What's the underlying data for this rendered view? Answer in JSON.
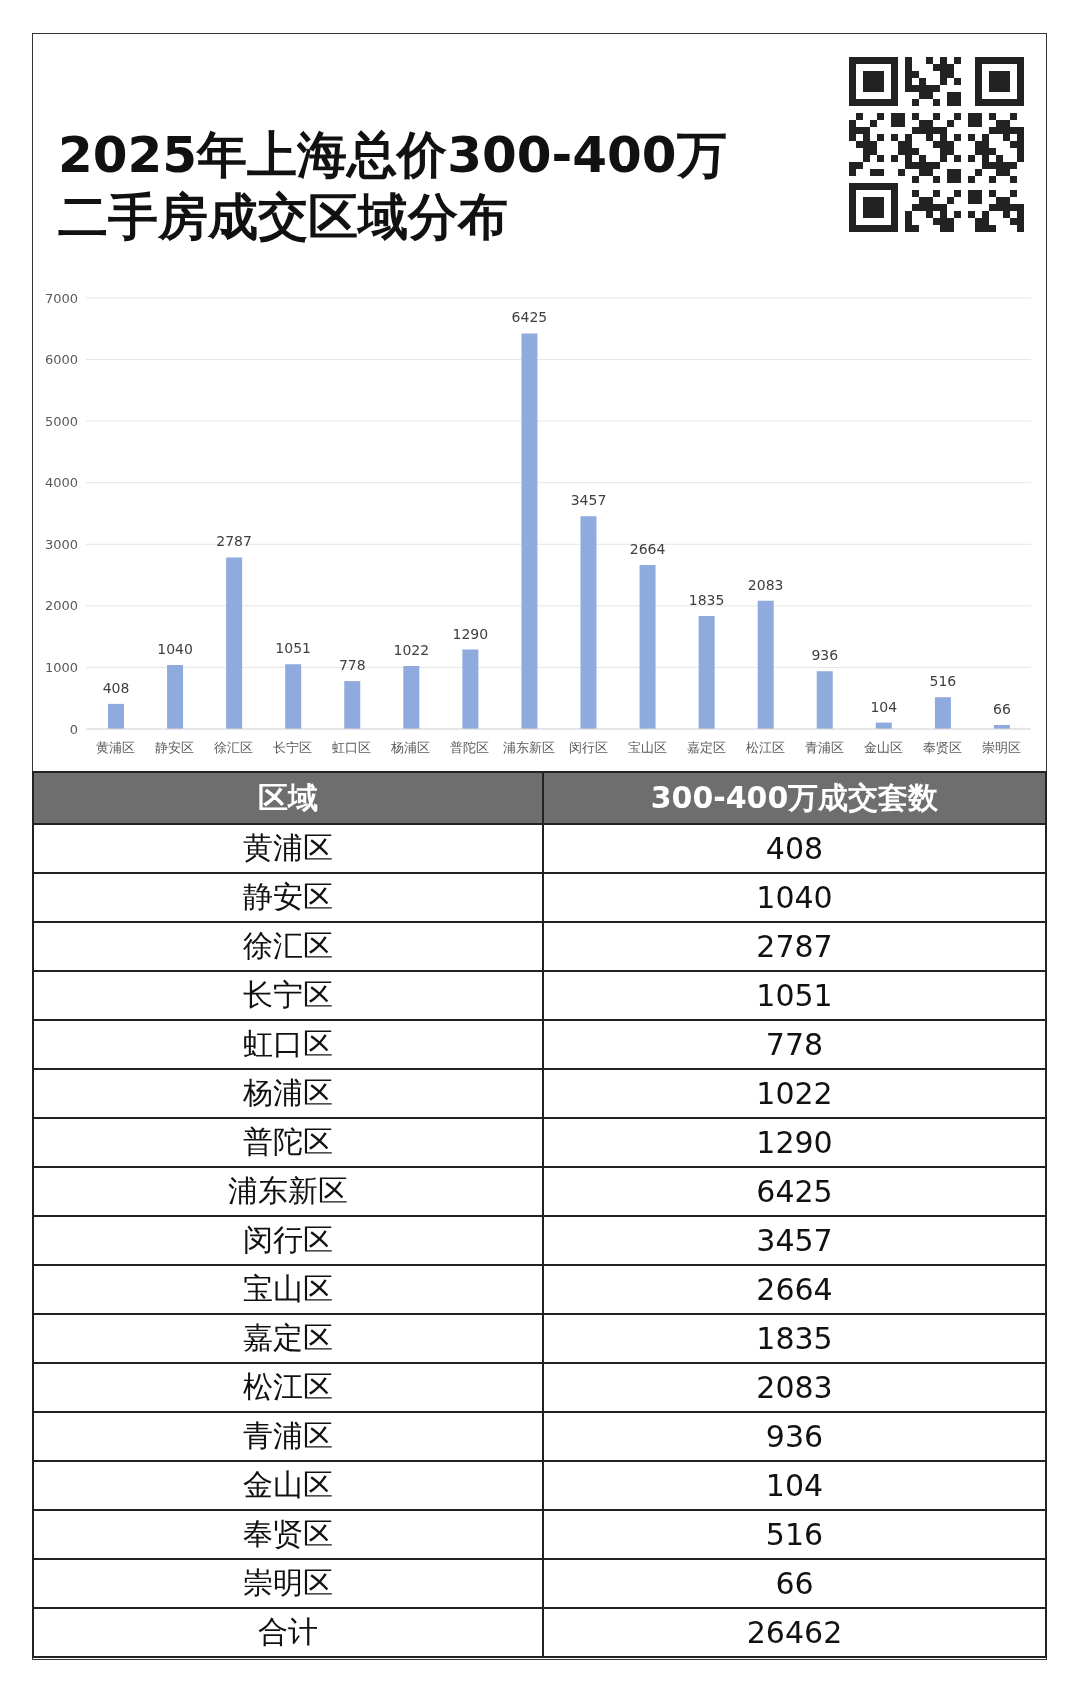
{
  "chart_data": [
    {
      "type": "bar",
      "title": "2025年上海总价300-400万二手房成交区域分布",
      "categories": [
        "黄浦区",
        "静安区",
        "徐汇区",
        "长宁区",
        "虹口区",
        "杨浦区",
        "普陀区",
        "浦东新区",
        "闵行区",
        "宝山区",
        "嘉定区",
        "松江区",
        "青浦区",
        "金山区",
        "奉贤区",
        "崇明区"
      ],
      "values": [
        408,
        1040,
        2787,
        1051,
        778,
        1022,
        1290,
        6425,
        3457,
        2664,
        1835,
        2083,
        936,
        104,
        516,
        66
      ],
      "color": "#8faadc",
      "ylim": [
        0,
        7000
      ],
      "yticks": [
        0,
        1000,
        2000,
        3000,
        4000,
        5000,
        6000,
        7000
      ],
      "grid": "y",
      "data_labels": true
    },
    {
      "type": "other",
      "xlabel": "区域",
      "ylabel": "300-400万成交套数",
      "categories": [
        "黄浦区",
        "静安区",
        "徐汇区",
        "长宁区",
        "虹口区",
        "杨浦区",
        "普陀区",
        "浦东新区",
        "闵行区",
        "宝山区",
        "嘉定区",
        "松江区",
        "青浦区",
        "金山区",
        "奉贤区",
        "崇明区",
        "合计"
      ],
      "values": [
        408,
        1040,
        2787,
        1051,
        778,
        1022,
        1290,
        6425,
        3457,
        2664,
        1835,
        2083,
        936,
        104,
        516,
        66,
        26462
      ],
      "data_labels": true
    }
  ]
}
